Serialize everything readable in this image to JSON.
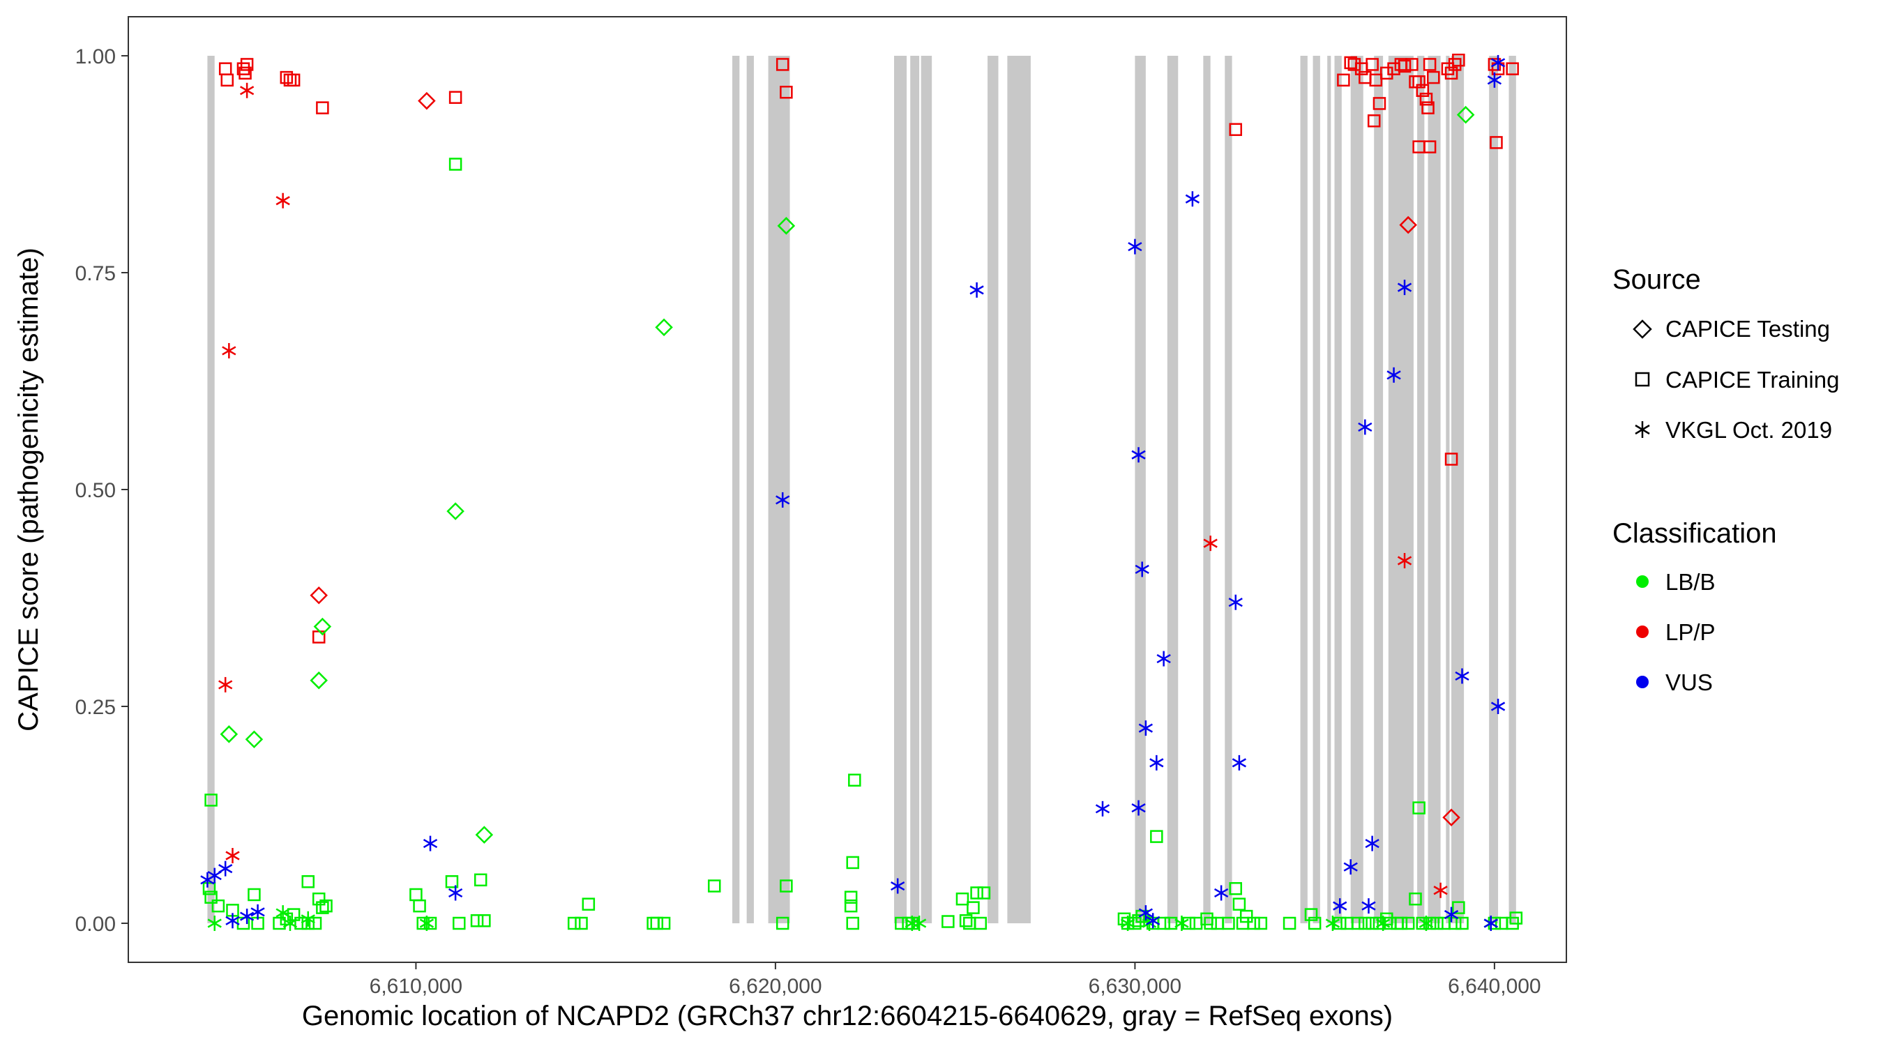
{
  "chart_data": {
    "type": "scatter",
    "title": "",
    "xlabel": "Genomic location of NCAPD2 (GRCh37 chr12:6604215-6640629, gray = RefSeq exons)",
    "ylabel": "CAPICE score (pathogenicity estimate)",
    "xlim": [
      6602000,
      6642000
    ],
    "ylim": [
      -0.045,
      1.045
    ],
    "x_ticks": [
      6610000,
      6620000,
      6630000,
      6640000
    ],
    "x_tick_labels": [
      "6,610,000",
      "6,620,000",
      "6,630,000",
      "6,640,000"
    ],
    "y_ticks": [
      0,
      0.25,
      0.5,
      0.75,
      1.0
    ],
    "y_tick_labels": [
      "0.00",
      "0.25",
      "0.50",
      "0.75",
      "1.00"
    ],
    "grid": false,
    "exons": [
      [
        6604200,
        6604400
      ],
      [
        6618800,
        6619000
      ],
      [
        6619200,
        6619400
      ],
      [
        6619800,
        6620400
      ],
      [
        6623300,
        6623650
      ],
      [
        6623750,
        6624000
      ],
      [
        6624050,
        6624350
      ],
      [
        6625900,
        6626200
      ],
      [
        6626450,
        6627100
      ],
      [
        6630000,
        6630300
      ],
      [
        6630900,
        6631200
      ],
      [
        6631900,
        6632100
      ],
      [
        6632500,
        6632700
      ],
      [
        6634600,
        6634800
      ],
      [
        6634950,
        6635150
      ],
      [
        6635350,
        6635450
      ],
      [
        6635550,
        6635750
      ],
      [
        6636000,
        6636350
      ],
      [
        6636650,
        6636900
      ],
      [
        6637050,
        6637750
      ],
      [
        6637850,
        6638050
      ],
      [
        6638150,
        6638500
      ],
      [
        6638650,
        6638750
      ],
      [
        6638800,
        6639150
      ],
      [
        6639850,
        6640100
      ],
      [
        6640400,
        6640600
      ]
    ],
    "legend": {
      "placement": "right",
      "source_title": "Source",
      "source_items": [
        {
          "label": "CAPICE Testing",
          "shape": "diamond"
        },
        {
          "label": "CAPICE Training",
          "shape": "square"
        },
        {
          "label": "VKGL Oct. 2019",
          "shape": "asterisk"
        }
      ],
      "class_title": "Classification",
      "class_items": [
        {
          "label": "LB/B",
          "color": "#00ee00"
        },
        {
          "label": "LP/P",
          "color": "#ee0000"
        },
        {
          "label": "VUS",
          "color": "#0000ee"
        }
      ]
    },
    "series": [
      {
        "source": "CAPICE Training",
        "class": "LP/P",
        "points": [
          [
            6604700,
            0.985
          ],
          [
            6604750,
            0.972
          ],
          [
            6605200,
            0.985
          ],
          [
            6605300,
            0.99
          ],
          [
            6605250,
            0.98
          ],
          [
            6606400,
            0.975
          ],
          [
            6606500,
            0.972
          ],
          [
            6606600,
            0.972
          ],
          [
            6607400,
            0.94
          ],
          [
            6607300,
            0.33
          ],
          [
            6611100,
            0.952
          ],
          [
            6620200,
            0.99
          ],
          [
            6620300,
            0.958
          ],
          [
            6632800,
            0.915
          ],
          [
            6635800,
            0.972
          ],
          [
            6636000,
            0.992
          ],
          [
            6636100,
            0.99
          ],
          [
            6636300,
            0.985
          ],
          [
            6636400,
            0.975
          ],
          [
            6636600,
            0.99
          ],
          [
            6636700,
            0.972
          ],
          [
            6636800,
            0.945
          ],
          [
            6636650,
            0.925
          ],
          [
            6637000,
            0.98
          ],
          [
            6637200,
            0.985
          ],
          [
            6637400,
            0.99
          ],
          [
            6637500,
            0.988
          ],
          [
            6637700,
            0.99
          ],
          [
            6637800,
            0.97
          ],
          [
            6637900,
            0.97
          ],
          [
            6638000,
            0.96
          ],
          [
            6638100,
            0.95
          ],
          [
            6638200,
            0.99
          ],
          [
            6638300,
            0.975
          ],
          [
            6638150,
            0.94
          ],
          [
            6638700,
            0.985
          ],
          [
            6638800,
            0.98
          ],
          [
            6638900,
            0.99
          ],
          [
            6639000,
            0.995
          ],
          [
            6637900,
            0.895
          ],
          [
            6638200,
            0.895
          ],
          [
            6638800,
            0.535
          ],
          [
            6640000,
            0.99
          ],
          [
            6640050,
            0.9
          ],
          [
            6640100,
            0.985
          ],
          [
            6640500,
            0.985
          ]
        ]
      },
      {
        "source": "CAPICE Testing",
        "class": "LP/P",
        "points": [
          [
            6607300,
            0.378
          ],
          [
            6610300,
            0.948
          ],
          [
            6637600,
            0.805
          ],
          [
            6638800,
            0.122
          ]
        ]
      },
      {
        "source": "VKGL Oct. 2019",
        "class": "LP/P",
        "points": [
          [
            6605300,
            0.96
          ],
          [
            6606300,
            0.833
          ],
          [
            6604800,
            0.66
          ],
          [
            6604700,
            0.275
          ],
          [
            6604900,
            0.078
          ],
          [
            6632100,
            0.438
          ],
          [
            6637500,
            0.418
          ],
          [
            6638500,
            0.038
          ]
        ]
      },
      {
        "source": "CAPICE Training",
        "class": "LB/B",
        "points": [
          [
            6604300,
            0.142
          ],
          [
            6604250,
            0.04
          ],
          [
            6604300,
            0.03
          ],
          [
            6604500,
            0.02
          ],
          [
            6604900,
            0.015
          ],
          [
            6605200,
            0.0
          ],
          [
            6605500,
            0.033
          ],
          [
            6605600,
            0.0
          ],
          [
            6606200,
            0.0
          ],
          [
            6606400,
            0.005
          ],
          [
            6606600,
            0.01
          ],
          [
            6606800,
            0.0
          ],
          [
            6607000,
            0.048
          ],
          [
            6607200,
            0.0
          ],
          [
            6607300,
            0.028
          ],
          [
            6607400,
            0.018
          ],
          [
            6607500,
            0.02
          ],
          [
            6607000,
            0.0
          ],
          [
            6610000,
            0.033
          ],
          [
            6610100,
            0.02
          ],
          [
            6610200,
            0.0
          ],
          [
            6610400,
            0.0
          ],
          [
            6611000,
            0.048
          ],
          [
            6611100,
            0.875
          ],
          [
            6611200,
            0.0
          ],
          [
            6611700,
            0.003
          ],
          [
            6611800,
            0.05
          ],
          [
            6611900,
            0.003
          ],
          [
            6614400,
            0.0
          ],
          [
            6614600,
            0.0
          ],
          [
            6614800,
            0.022
          ],
          [
            6616600,
            0.0
          ],
          [
            6616700,
            0.0
          ],
          [
            6616900,
            0.0
          ],
          [
            6618300,
            0.043
          ],
          [
            6620200,
            0.0
          ],
          [
            6620300,
            0.043
          ],
          [
            6622200,
            0.165
          ],
          [
            6622150,
            0.07
          ],
          [
            6622100,
            0.03
          ],
          [
            6622100,
            0.02
          ],
          [
            6622150,
            0.0
          ],
          [
            6623500,
            0.0
          ],
          [
            6623700,
            0.0
          ],
          [
            6623800,
            0.0
          ],
          [
            6624800,
            0.002
          ],
          [
            6625200,
            0.028
          ],
          [
            6625300,
            0.003
          ],
          [
            6625400,
            0.0
          ],
          [
            6625500,
            0.018
          ],
          [
            6625600,
            0.035
          ],
          [
            6625700,
            0.0
          ],
          [
            6625800,
            0.035
          ],
          [
            6629700,
            0.005
          ],
          [
            6629800,
            0.0
          ],
          [
            6630000,
            0.0
          ],
          [
            6630100,
            0.003
          ],
          [
            6630200,
            0.008
          ],
          [
            6630500,
            0.0
          ],
          [
            6630600,
            0.1
          ],
          [
            6630800,
            0.0
          ],
          [
            6631000,
            0.0
          ],
          [
            6631500,
            0.0
          ],
          [
            6631700,
            0.0
          ],
          [
            6632000,
            0.005
          ],
          [
            6632100,
            0.0
          ],
          [
            6632300,
            0.0
          ],
          [
            6632600,
            0.0
          ],
          [
            6632800,
            0.04
          ],
          [
            6632900,
            0.022
          ],
          [
            6633000,
            0.0
          ],
          [
            6633100,
            0.008
          ],
          [
            6633300,
            0.0
          ],
          [
            6633500,
            0.0
          ],
          [
            6634300,
            0.0
          ],
          [
            6634900,
            0.01
          ],
          [
            6635000,
            0.0
          ],
          [
            6635700,
            0.0
          ],
          [
            6635900,
            0.0
          ],
          [
            6636200,
            0.0
          ],
          [
            6636400,
            0.0
          ],
          [
            6636600,
            0.0
          ],
          [
            6636800,
            0.0
          ],
          [
            6637000,
            0.005
          ],
          [
            6637100,
            0.0
          ],
          [
            6637300,
            0.0
          ],
          [
            6637400,
            0.0
          ],
          [
            6637600,
            0.0
          ],
          [
            6637800,
            0.028
          ],
          [
            6637900,
            0.133
          ],
          [
            6638000,
            0.0
          ],
          [
            6638200,
            0.0
          ],
          [
            6638400,
            0.0
          ],
          [
            6638600,
            0.0
          ],
          [
            6638900,
            0.0
          ],
          [
            6639000,
            0.018
          ],
          [
            6639100,
            0.0
          ],
          [
            6640000,
            0.0
          ],
          [
            6640200,
            0.0
          ],
          [
            6640500,
            0.0
          ],
          [
            6640600,
            0.006
          ]
        ]
      },
      {
        "source": "CAPICE Testing",
        "class": "LB/B",
        "points": [
          [
            6604800,
            0.218
          ],
          [
            6605500,
            0.212
          ],
          [
            6607400,
            0.342
          ],
          [
            6607300,
            0.28
          ],
          [
            6611100,
            0.475
          ],
          [
            6611900,
            0.102
          ],
          [
            6616900,
            0.687
          ],
          [
            6620300,
            0.804
          ],
          [
            6639200,
            0.932
          ]
        ]
      },
      {
        "source": "VKGL Oct. 2019",
        "class": "LB/B",
        "points": [
          [
            6604400,
            0.0
          ],
          [
            6606300,
            0.012
          ],
          [
            6606500,
            0.0
          ],
          [
            6607000,
            0.005
          ],
          [
            6610300,
            0.0
          ],
          [
            6623800,
            0.0
          ],
          [
            6624000,
            0.0
          ],
          [
            6629800,
            0.0
          ],
          [
            6630400,
            0.0
          ],
          [
            6631300,
            0.0
          ],
          [
            6635500,
            0.0
          ],
          [
            6636900,
            0.0
          ],
          [
            6638100,
            0.0
          ],
          [
            6639900,
            0.0
          ]
        ]
      },
      {
        "source": "VKGL Oct. 2019",
        "class": "VUS",
        "points": [
          [
            6604200,
            0.05
          ],
          [
            6604400,
            0.055
          ],
          [
            6604700,
            0.063
          ],
          [
            6604900,
            0.003
          ],
          [
            6605300,
            0.008
          ],
          [
            6605600,
            0.013
          ],
          [
            6610400,
            0.092
          ],
          [
            6611100,
            0.035
          ],
          [
            6623400,
            0.043
          ],
          [
            6625600,
            0.73
          ],
          [
            6620200,
            0.488
          ],
          [
            6629100,
            0.132
          ],
          [
            6630000,
            0.78
          ],
          [
            6630100,
            0.54
          ],
          [
            6630200,
            0.408
          ],
          [
            6630300,
            0.225
          ],
          [
            6630100,
            0.133
          ],
          [
            6630600,
            0.185
          ],
          [
            6630800,
            0.305
          ],
          [
            6630300,
            0.012
          ],
          [
            6630500,
            0.003
          ],
          [
            6631600,
            0.835
          ],
          [
            6632400,
            0.035
          ],
          [
            6632800,
            0.37
          ],
          [
            6632900,
            0.185
          ],
          [
            6635700,
            0.02
          ],
          [
            6636000,
            0.065
          ],
          [
            6636400,
            0.572
          ],
          [
            6636500,
            0.02
          ],
          [
            6636600,
            0.092
          ],
          [
            6637200,
            0.632
          ],
          [
            6637500,
            0.733
          ],
          [
            6638800,
            0.01
          ],
          [
            6639100,
            0.285
          ],
          [
            6640000,
            0.972
          ],
          [
            6640100,
            0.992
          ],
          [
            6640100,
            0.25
          ],
          [
            6639900,
            0.0
          ]
        ]
      }
    ]
  }
}
